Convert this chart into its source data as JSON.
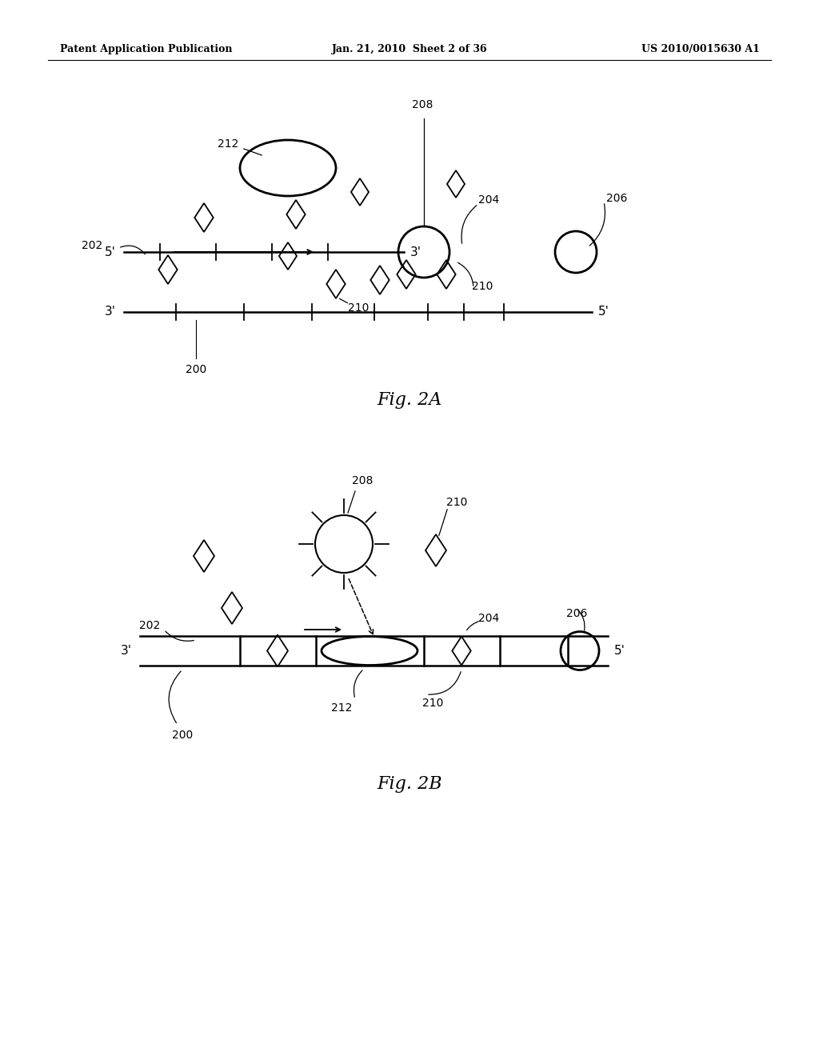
{
  "bg_color": "#ffffff",
  "header_left": "Patent Application Publication",
  "header_center": "Jan. 21, 2010  Sheet 2 of 36",
  "header_right": "US 2010/0015630 A1",
  "fig2a_label": "Fig. 2A",
  "fig2b_label": "Fig. 2B",
  "line_color": "#000000"
}
